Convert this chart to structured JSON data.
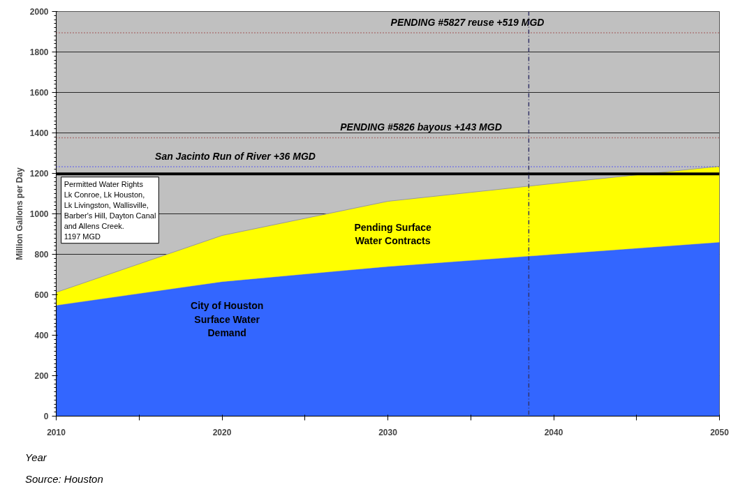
{
  "chart_data": {
    "type": "area",
    "stacked": true,
    "ylabel": "Million Gallons per Day",
    "xlabel": "Year",
    "x": [
      2010,
      2020,
      2030,
      2040,
      2050
    ],
    "series": [
      {
        "name": "City of Houston Surface Water Demand",
        "color": "#3366ff",
        "values": [
          548,
          665,
          740,
          800,
          860
        ]
      },
      {
        "name": "Pending Surface Water Contracts",
        "color": "#ffff00",
        "values": [
          64,
          228,
          322,
          350,
          375
        ]
      }
    ],
    "xlim": [
      2010,
      2050
    ],
    "ylim": [
      0,
      2000
    ],
    "xticks": [
      2010,
      {
        "value": 2015,
        "label": null
      },
      2020,
      {
        "value": 2025,
        "label": null
      },
      2030,
      {
        "value": 2035,
        "label": null
      },
      2040,
      {
        "value": 2045,
        "label": null
      },
      2050
    ],
    "yticks": [
      0,
      200,
      400,
      600,
      800,
      1000,
      1200,
      1400,
      1600,
      1800,
      2000
    ],
    "grid": "y",
    "ref_lines": [
      {
        "axis": "y",
        "value": 1197,
        "color": "#000000",
        "line_style": "solid",
        "label": "Permitted Water Rights\nLk Conroe, Lk Houston,\nLk Livingston, Wallisville,\nBarber's Hill, Dayton Canal\nand Allens Creek.\n1197 MGD"
      },
      {
        "axis": "y",
        "value": 1233,
        "color": "#3333ff",
        "line_style": "dotted",
        "label": "San Jacinto Run of River +36 MGD"
      },
      {
        "axis": "y",
        "value": 1376,
        "color": "#993333",
        "line_style": "dotted",
        "label": "PENDING #5826 bayous +143 MGD"
      },
      {
        "axis": "y",
        "value": 1895,
        "color": "#993333",
        "line_style": "dotted",
        "label": "PENDING #5827 reuse +519 MGD"
      },
      {
        "axis": "x",
        "value": 2038.5,
        "color": "#333366",
        "line_style": "dashed"
      }
    ],
    "annotations": [
      "Source: Houston"
    ]
  }
}
